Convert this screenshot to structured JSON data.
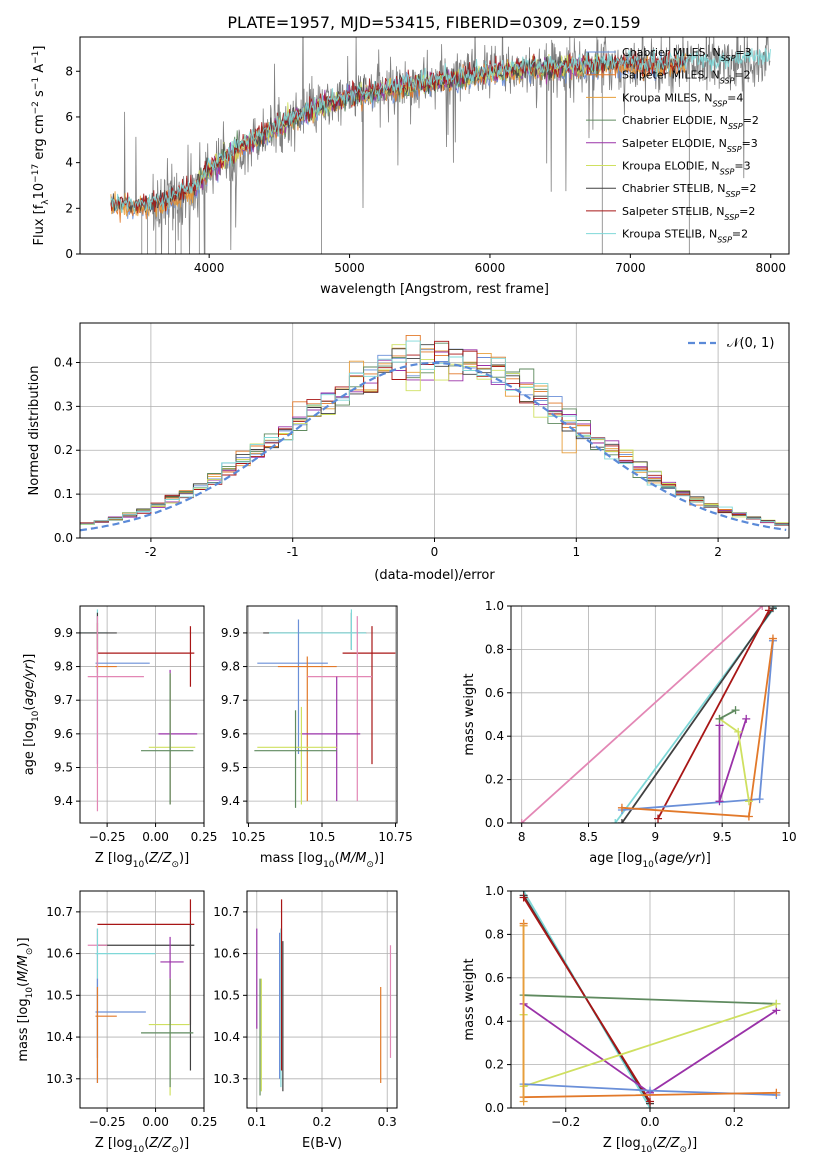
{
  "title": "PLATE=1957, MJD=53415, FIBERID=0309, z=0.159",
  "colors": {
    "chabrier_miles": "#6a8fd8",
    "salpeter_miles": "#e2792a",
    "kroupa_miles": "#e79e3a",
    "chabrier_elodie": "#5f8a5f",
    "salpeter_elodie": "#9a32a8",
    "kroupa_elodie": "#cfe060",
    "chabrier_stelib": "#404040",
    "salpeter_stelib": "#a81616",
    "kroupa_stelib": "#7fd8d8",
    "pink": "#e387b5",
    "normal": "#5b8ad8",
    "data": "#808080"
  },
  "chart_data": [
    {
      "id": "spectrum",
      "type": "line",
      "xlabel": "wavelength [Angstrom, rest frame]",
      "ylabel": "Flux [f_λ10^-17 erg cm^-2 s^-1 A^-1]",
      "xlim": [
        3080,
        8130
      ],
      "ylim": [
        0,
        9.5
      ],
      "xticks": [
        4000,
        5000,
        6000,
        7000,
        8000
      ],
      "yticks": [
        0,
        2,
        4,
        6,
        8
      ],
      "legend_position": "top-right",
      "legend": [
        {
          "main": "Chabrier MILES, N",
          "sub": "SSP",
          "val": "=3",
          "color": "chabrier_miles"
        },
        {
          "main": "Salpeter MILES, N",
          "sub": "SSP",
          "val": "=2",
          "color": "salpeter_miles"
        },
        {
          "main": "Kroupa MILES, N",
          "sub": "SSP",
          "val": "=4",
          "color": "kroupa_miles"
        },
        {
          "main": "Chabrier ELODIE, N",
          "sub": "SSP",
          "val": "=2",
          "color": "chabrier_elodie"
        },
        {
          "main": "Salpeter ELODIE, N",
          "sub": "SSP",
          "val": "=3",
          "color": "salpeter_elodie"
        },
        {
          "main": "Kroupa ELODIE, N",
          "sub": "SSP",
          "val": "=3",
          "color": "kroupa_elodie"
        },
        {
          "main": "Chabrier STELIB, N",
          "sub": "SSP",
          "val": "=2",
          "color": "chabrier_stelib"
        },
        {
          "main": "Salpeter STELIB, N",
          "sub": "SSP",
          "val": "=2",
          "color": "salpeter_stelib"
        },
        {
          "main": "Kroupa STELIB, N",
          "sub": "SSP",
          "val": "=2",
          "color": "kroupa_stelib"
        }
      ],
      "data_trend": {
        "x": [
          3300,
          3500,
          3700,
          3900,
          4000,
          4200,
          4400,
          4600,
          4800,
          5000,
          5200,
          5400,
          5600,
          5800,
          6000,
          6200,
          6400,
          6600,
          6800,
          7000,
          7200,
          7400,
          7600,
          7800,
          8000
        ],
        "y": [
          2.2,
          2.05,
          2.3,
          2.9,
          3.7,
          4.6,
          5.3,
          5.9,
          6.4,
          6.9,
          7.1,
          7.35,
          7.55,
          7.7,
          7.95,
          8.1,
          8.1,
          8.2,
          8.25,
          8.3,
          8.2,
          8.4,
          8.35,
          8.5,
          8.6
        ]
      }
    },
    {
      "id": "residuals",
      "type": "histogram",
      "xlabel": "(data-model)/error",
      "ylabel": "Normed distribution",
      "xlim": [
        -2.5,
        2.5
      ],
      "ylim": [
        0,
        0.49
      ],
      "xticks": [
        -2,
        -1,
        0,
        1,
        2
      ],
      "yticks": [
        0.0,
        0.1,
        0.2,
        0.3,
        0.4
      ],
      "legend_label": "𝒩(0, 1)",
      "legend_position": "top-right",
      "normal": {
        "mean": 0,
        "sigma": 1
      }
    },
    {
      "id": "age_vs_Z",
      "type": "errorbar",
      "xlabel": "Z [log10(Z/Z⊙)]",
      "ylabel": "age [log10(age/yr)]",
      "xlim": [
        -0.39,
        0.25
      ],
      "ylim": [
        9.335,
        9.98
      ],
      "xticks": [
        -0.25,
        0.0,
        0.25
      ],
      "xticklabels": [
        "−0.25",
        "0.00",
        "0.25"
      ],
      "yticks": [
        9.4,
        9.5,
        9.6,
        9.7,
        9.8,
        9.9
      ],
      "points": [
        {
          "x": -0.3,
          "y": 9.9,
          "xerr": [
            0.3,
            0.05
          ],
          "yerr": [
            0.05,
            0.07
          ],
          "color": "kroupa_stelib"
        },
        {
          "x": -0.3,
          "y": 9.9,
          "xerr": [
            0.25,
            0.1
          ],
          "yerr": [
            0.05,
            0.06
          ],
          "color": "chabrier_stelib"
        },
        {
          "x": 0.18,
          "y": 9.84,
          "xerr": [
            0.48,
            0.02
          ],
          "yerr": [
            0.1,
            0.08
          ],
          "color": "salpeter_stelib"
        },
        {
          "x": -0.3,
          "y": 9.81,
          "xerr": [
            0.01,
            0.27
          ],
          "yerr": [
            0.3,
            0.12
          ],
          "color": "chabrier_miles"
        },
        {
          "x": -0.3,
          "y": 9.8,
          "xerr": [
            0.01,
            0.1
          ],
          "yerr": [
            0.02,
            0.13
          ],
          "color": "salpeter_miles"
        },
        {
          "x": -0.3,
          "y": 9.77,
          "xerr": [
            0.05,
            0.24
          ],
          "yerr": [
            0.4,
            0.18
          ],
          "color": "pink"
        },
        {
          "x": 0.075,
          "y": 9.6,
          "xerr": [
            0.06,
            0.14
          ],
          "yerr": [
            0.21,
            0.19
          ],
          "color": "salpeter_elodie"
        },
        {
          "x": 0.075,
          "y": 9.56,
          "xerr": [
            0.11,
            0.13
          ],
          "yerr": [
            0.17,
            0.22
          ],
          "color": "kroupa_elodie"
        },
        {
          "x": 0.075,
          "y": 9.55,
          "xerr": [
            0.15,
            0.12
          ],
          "yerr": [
            0.16,
            0.23
          ],
          "color": "chabrier_elodie"
        }
      ]
    },
    {
      "id": "age_vs_mass",
      "type": "errorbar",
      "xlabel": "mass [log10(M/M⊙)]",
      "ylabel": "",
      "xlim": [
        10.245,
        10.755
      ],
      "ylim": [
        9.335,
        9.98
      ],
      "xticks": [
        10.25,
        10.5,
        10.75
      ],
      "yticks": [
        9.4,
        9.5,
        9.6,
        9.7,
        9.8,
        9.9
      ],
      "points": [
        {
          "x": 10.6,
          "y": 9.9,
          "xerr": [
            0.3,
            0.05
          ],
          "yerr": [
            0.05,
            0.06
          ],
          "color": "chabrier_stelib"
        },
        {
          "x": 10.6,
          "y": 9.9,
          "xerr": [
            0.28,
            0.05
          ],
          "yerr": [
            0.05,
            0.07
          ],
          "color": "kroupa_stelib"
        },
        {
          "x": 10.67,
          "y": 9.84,
          "xerr": [
            0.1,
            0.08
          ],
          "yerr": [
            0.33,
            0.08
          ],
          "color": "salpeter_stelib"
        },
        {
          "x": 10.42,
          "y": 9.81,
          "xerr": [
            0.14,
            0.1
          ],
          "yerr": [
            0.27,
            0.13
          ],
          "color": "chabrier_miles"
        },
        {
          "x": 10.45,
          "y": 9.8,
          "xerr": [
            0.1,
            0.1
          ],
          "yerr": [
            0.4,
            0.03
          ],
          "color": "salpeter_miles"
        },
        {
          "x": 10.62,
          "y": 9.77,
          "xerr": [
            0.17,
            0.05
          ],
          "yerr": [
            0.37,
            0.18
          ],
          "color": "pink"
        },
        {
          "x": 10.55,
          "y": 9.6,
          "xerr": [
            0.12,
            0.08
          ],
          "yerr": [
            0.2,
            0.17
          ],
          "color": "salpeter_elodie"
        },
        {
          "x": 10.43,
          "y": 9.56,
          "xerr": [
            0.15,
            0.12
          ],
          "yerr": [
            0.17,
            0.12
          ],
          "color": "kroupa_elodie"
        },
        {
          "x": 10.41,
          "y": 9.55,
          "xerr": [
            0.14,
            0.14
          ],
          "yerr": [
            0.17,
            0.12
          ],
          "color": "chabrier_elodie"
        }
      ]
    },
    {
      "id": "mass_weight_vs_age",
      "type": "line",
      "xlabel": "age [log10(age/yr)]",
      "ylabel": "mass weight",
      "xlim": [
        7.92,
        10.0
      ],
      "ylim": [
        0,
        1.0
      ],
      "xticks": [
        8.0,
        8.5,
        9.0,
        9.5,
        10.0
      ],
      "yticks": [
        0.0,
        0.2,
        0.4,
        0.6,
        0.8,
        1.0
      ],
      "series": [
        {
          "color": "pink",
          "x": [
            8.0,
            9.8
          ],
          "y": [
            0.0,
            1.0
          ]
        },
        {
          "color": "kroupa_stelib",
          "x": [
            8.7,
            9.9
          ],
          "y": [
            0.0,
            1.0
          ]
        },
        {
          "color": "chabrier_stelib",
          "x": [
            8.75,
            9.88
          ],
          "y": [
            0.0,
            0.99
          ]
        },
        {
          "color": "salpeter_stelib",
          "x": [
            9.02,
            9.85
          ],
          "y": [
            0.02,
            0.98
          ]
        },
        {
          "color": "chabrier_miles",
          "x": [
            8.75,
            9.78,
            9.88
          ],
          "y": [
            0.06,
            0.11,
            0.84
          ]
        },
        {
          "color": "salpeter_miles",
          "x": [
            8.75,
            9.7,
            9.88
          ],
          "y": [
            0.07,
            0.03,
            0.85
          ]
        },
        {
          "color": "salpeter_elodie",
          "x": [
            9.48,
            9.48,
            9.68
          ],
          "y": [
            0.45,
            0.1,
            0.48
          ]
        },
        {
          "color": "kroupa_elodie",
          "x": [
            9.48,
            9.62,
            9.7
          ],
          "y": [
            0.48,
            0.42,
            0.1
          ]
        },
        {
          "color": "chabrier_elodie",
          "x": [
            9.48,
            9.6
          ],
          "y": [
            0.48,
            0.52
          ]
        }
      ]
    },
    {
      "id": "mass_vs_Z",
      "type": "errorbar",
      "xlabel": "Z [log10(Z/Z⊙)]",
      "ylabel": "mass [log10(M/M⊙)]",
      "xlim": [
        -0.39,
        0.25
      ],
      "ylim": [
        10.23,
        10.75
      ],
      "xticks": [
        -0.25,
        0.0,
        0.25
      ],
      "xticklabels": [
        "−0.25",
        "0.00",
        "0.25"
      ],
      "yticks": [
        10.3,
        10.4,
        10.5,
        10.6,
        10.7
      ],
      "points": [
        {
          "x": 0.18,
          "y": 10.67,
          "xerr": [
            0.48,
            0.02
          ],
          "yerr": [
            0.24,
            0.06
          ],
          "color": "salpeter_stelib"
        },
        {
          "x": 0.18,
          "y": 10.62,
          "xerr": [
            0.48,
            0.02
          ],
          "yerr": [
            0.3,
            0.05
          ],
          "color": "chabrier_stelib"
        },
        {
          "x": -0.3,
          "y": 10.62,
          "xerr": [
            0.05,
            0.05
          ],
          "yerr": [
            0.27,
            0.04
          ],
          "color": "pink"
        },
        {
          "x": -0.3,
          "y": 10.6,
          "xerr": [
            0.01,
            0.3
          ],
          "yerr": [
            0.25,
            0.06
          ],
          "color": "kroupa_stelib"
        },
        {
          "x": 0.075,
          "y": 10.58,
          "xerr": [
            0.05,
            0.07
          ],
          "yerr": [
            0.15,
            0.06
          ],
          "color": "salpeter_elodie"
        },
        {
          "x": -0.3,
          "y": 10.46,
          "xerr": [
            0.01,
            0.25
          ],
          "yerr": [
            0.17,
            0.08
          ],
          "color": "chabrier_miles"
        },
        {
          "x": -0.3,
          "y": 10.45,
          "xerr": [
            0.01,
            0.1
          ],
          "yerr": [
            0.16,
            0.07
          ],
          "color": "salpeter_miles"
        },
        {
          "x": 0.075,
          "y": 10.43,
          "xerr": [
            0.11,
            0.1
          ],
          "yerr": [
            0.17,
            0.11
          ],
          "color": "kroupa_elodie"
        },
        {
          "x": 0.075,
          "y": 10.41,
          "xerr": [
            0.15,
            0.12
          ],
          "yerr": [
            0.13,
            0.13
          ],
          "color": "chabrier_elodie"
        }
      ]
    },
    {
      "id": "mass_vs_ebv",
      "type": "errorbar",
      "xlabel": "E(B-V)",
      "ylabel": "",
      "xlim": [
        0.085,
        0.315
      ],
      "ylim": [
        10.23,
        10.75
      ],
      "xticks": [
        0.1,
        0.2,
        0.3
      ],
      "yticks": [
        10.3,
        10.4,
        10.5,
        10.6,
        10.7
      ],
      "points": [
        {
          "x": 0.1,
          "y": 10.55,
          "xerr": [
            0,
            0
          ],
          "yerr": [
            0.13,
            0.11
          ],
          "color": "salpeter_elodie"
        },
        {
          "x": 0.105,
          "y": 10.4,
          "xerr": [
            0,
            0
          ],
          "yerr": [
            0.14,
            0.14
          ],
          "color": "chabrier_elodie"
        },
        {
          "x": 0.107,
          "y": 10.42,
          "xerr": [
            0,
            0
          ],
          "yerr": [
            0.15,
            0.12
          ],
          "color": "kroupa_elodie"
        },
        {
          "x": 0.135,
          "y": 10.45,
          "xerr": [
            0,
            0
          ],
          "yerr": [
            0.15,
            0.2
          ],
          "color": "chabrier_miles"
        },
        {
          "x": 0.137,
          "y": 10.45,
          "xerr": [
            0,
            0
          ],
          "yerr": [
            0.17,
            0.21
          ],
          "color": "kroupa_stelib"
        },
        {
          "x": 0.138,
          "y": 10.62,
          "xerr": [
            0,
            0
          ],
          "yerr": [
            0.3,
            0.11
          ],
          "color": "salpeter_stelib"
        },
        {
          "x": 0.14,
          "y": 10.55,
          "xerr": [
            0,
            0
          ],
          "yerr": [
            0.28,
            0.08
          ],
          "color": "chabrier_stelib"
        },
        {
          "x": 0.29,
          "y": 10.4,
          "xerr": [
            0,
            0
          ],
          "yerr": [
            0.11,
            0.12
          ],
          "color": "salpeter_miles"
        },
        {
          "x": 0.305,
          "y": 10.5,
          "xerr": [
            0,
            0
          ],
          "yerr": [
            0.15,
            0.12
          ],
          "color": "pink"
        }
      ]
    },
    {
      "id": "mass_weight_vs_Z",
      "type": "line",
      "xlabel": "Z [log10(Z/Z⊙)]",
      "ylabel": "mass weight",
      "xlim": [
        -0.33,
        0.33
      ],
      "ylim": [
        0,
        1.0
      ],
      "xticks": [
        -0.2,
        0.0,
        0.2
      ],
      "xticklabels": [
        "−0.2",
        "0.0",
        "0.2"
      ],
      "yticks": [
        0.0,
        0.2,
        0.4,
        0.6,
        0.8,
        1.0
      ],
      "series": [
        {
          "color": "kroupa_stelib",
          "x": [
            -0.3,
            0.0
          ],
          "y": [
            1.0,
            0.0
          ]
        },
        {
          "color": "chabrier_stelib",
          "x": [
            -0.3,
            0.0
          ],
          "y": [
            0.98,
            0.02
          ]
        },
        {
          "color": "salpeter_stelib",
          "x": [
            -0.3,
            0.0
          ],
          "y": [
            0.97,
            0.03
          ]
        },
        {
          "color": "chabrier_elodie",
          "x": [
            -0.3,
            0.3
          ],
          "y": [
            0.52,
            0.48
          ]
        },
        {
          "color": "salpeter_elodie",
          "x": [
            -0.3,
            0.0,
            0.3
          ],
          "y": [
            0.48,
            0.07,
            0.45
          ]
        },
        {
          "color": "kroupa_elodie",
          "x": [
            -0.3,
            -0.3,
            0.3
          ],
          "y": [
            0.43,
            0.1,
            0.48
          ]
        },
        {
          "color": "chabrier_miles",
          "x": [
            -0.3,
            0.0,
            0.3
          ],
          "y": [
            0.11,
            0.08,
            0.06
          ]
        },
        {
          "color": "salpeter_miles",
          "x": [
            -0.3,
            -0.3,
            0.3
          ],
          "y": [
            0.85,
            0.05,
            0.07
          ]
        },
        {
          "color": "kroupa_miles",
          "x": [
            -0.3,
            -0.3
          ],
          "y": [
            0.84,
            0.03
          ]
        }
      ]
    }
  ]
}
